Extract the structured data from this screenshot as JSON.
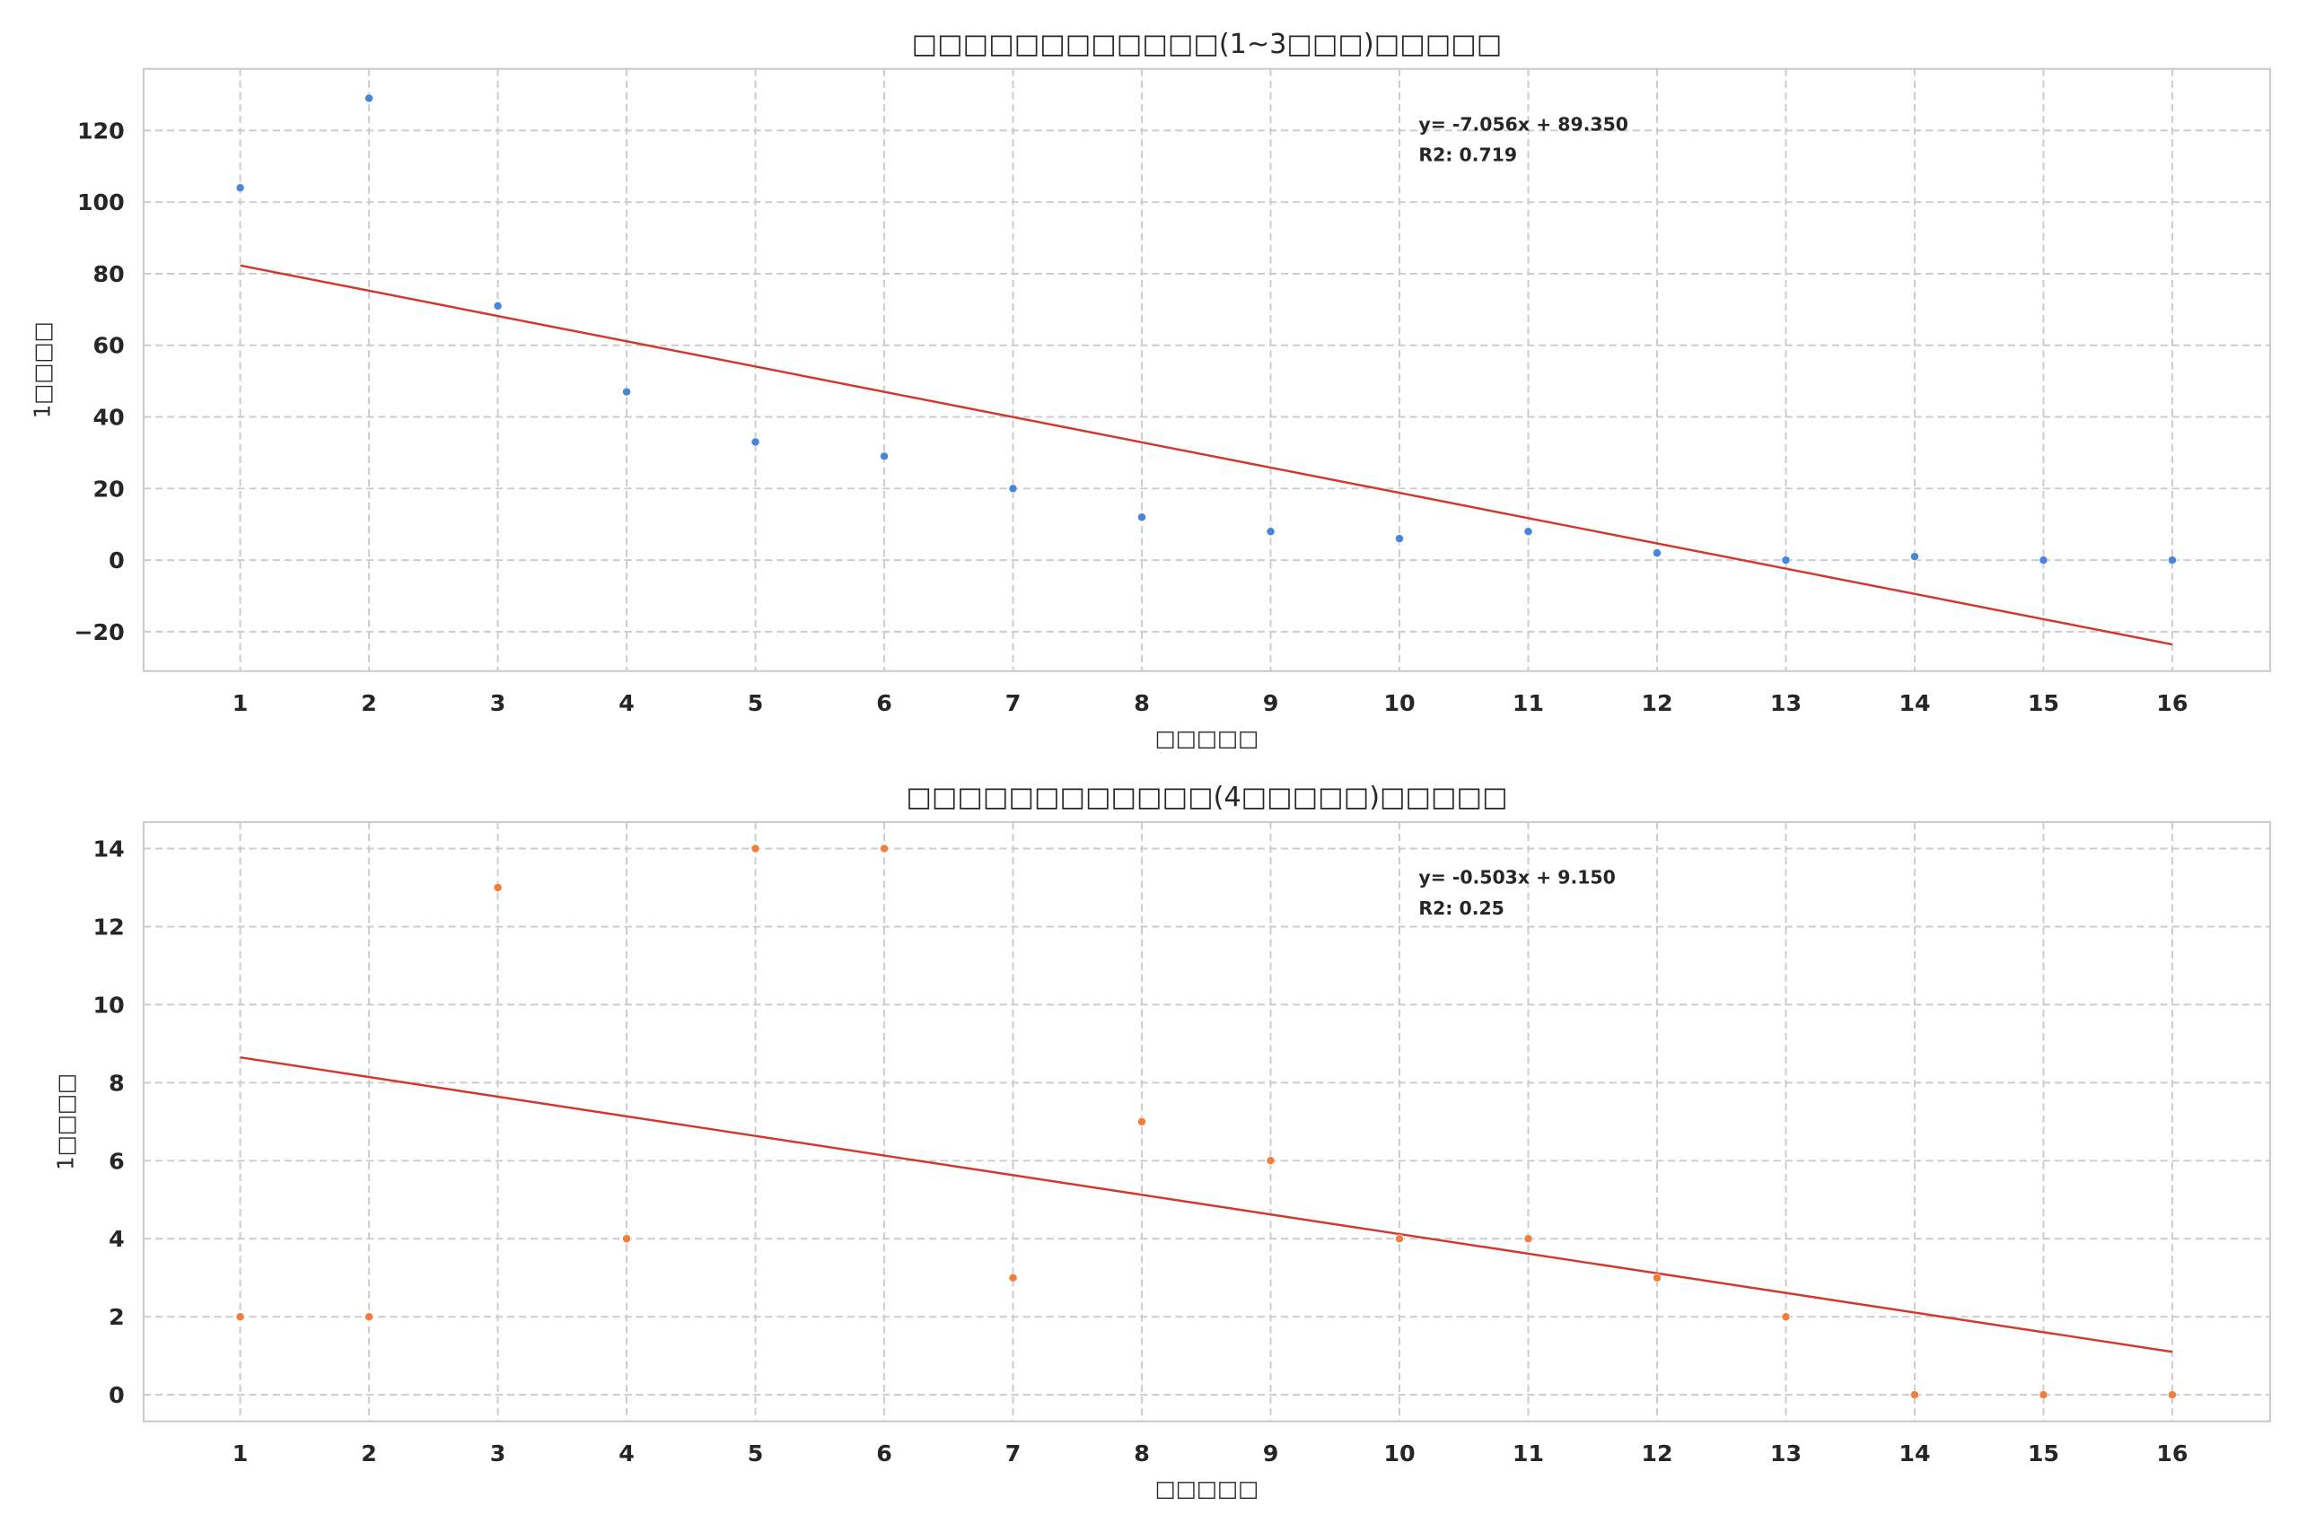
{
  "chart_data": [
    {
      "type": "scatter",
      "title": "□□□□□□□□□□□□(1~3□□□)□□□□□",
      "xlabel": "□□□□□",
      "ylabel": "1□□□□",
      "x": [
        1,
        2,
        3,
        4,
        5,
        6,
        7,
        8,
        9,
        10,
        11,
        12,
        13,
        14,
        15,
        16
      ],
      "y": [
        104,
        129,
        71,
        47,
        33,
        29,
        20,
        12,
        8,
        6,
        8,
        2,
        0,
        1,
        0,
        0
      ],
      "xticks": [
        1,
        2,
        3,
        4,
        5,
        6,
        7,
        8,
        9,
        10,
        11,
        12,
        13,
        14,
        15,
        16
      ],
      "yticks": [
        -20,
        0,
        20,
        40,
        60,
        80,
        100,
        120
      ],
      "xlim": [
        0.25,
        16.76
      ],
      "ylim": [
        -31,
        137.2
      ],
      "grid": true,
      "point_color": "#4a86d8",
      "fit": {
        "slope": -7.056,
        "intercept": 89.35,
        "color": "#d0392b"
      },
      "annotation": [
        "y= -7.056x + 89.350",
        "R2: 0.719"
      ]
    },
    {
      "type": "scatter",
      "title": "□□□□□□□□□□□□(4□□□□□)□□□□□",
      "xlabel": "□□□□□",
      "ylabel": "1□□□□",
      "x": [
        1,
        2,
        3,
        4,
        5,
        6,
        7,
        8,
        9,
        10,
        11,
        12,
        13,
        14,
        15,
        16
      ],
      "y": [
        2,
        2,
        13,
        4,
        14,
        14,
        3,
        7,
        6,
        4,
        4,
        3,
        2,
        0,
        0,
        0
      ],
      "xticks": [
        1,
        2,
        3,
        4,
        5,
        6,
        7,
        8,
        9,
        10,
        11,
        12,
        13,
        14,
        15,
        16
      ],
      "yticks": [
        0,
        2,
        4,
        6,
        8,
        10,
        12,
        14
      ],
      "xlim": [
        0.25,
        16.76
      ],
      "ylim": [
        -0.68,
        14.68
      ],
      "grid": true,
      "point_color": "#ef7f3d",
      "fit": {
        "slope": -0.503,
        "intercept": 9.15,
        "color": "#d0392b"
      },
      "annotation": [
        "y= -0.503x + 9.150",
        "R2: 0.25"
      ]
    }
  ]
}
